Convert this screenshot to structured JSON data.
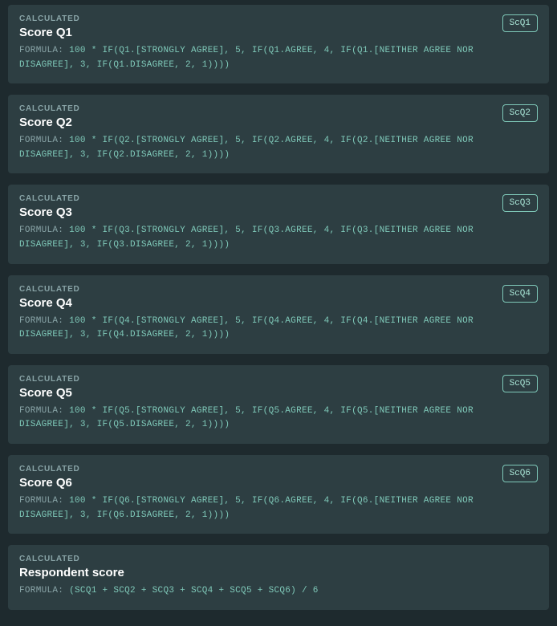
{
  "colors": {
    "page_bg": "#1e2a2e",
    "card_bg": "#2d3e42",
    "type_label": "#8aa5a8",
    "title": "#ffffff",
    "formula_text": "#7fc9b9",
    "formula_prefix": "#8aa5a8",
    "badge_border": "#7fc9b9",
    "badge_text": "#a9e5d6"
  },
  "labels": {
    "type": "CALCULATED",
    "formula_prefix": "FORMULA:"
  },
  "cards": [
    {
      "title": "Score Q1",
      "badge": "ScQ1",
      "formula": "100 * IF(Q1.[STRONGLY AGREE], 5, IF(Q1.AGREE, 4, IF(Q1.[NEITHER AGREE NOR DISAGREE], 3, IF(Q1.DISAGREE, 2, 1))))"
    },
    {
      "title": "Score Q2",
      "badge": "ScQ2",
      "formula": "100 * IF(Q2.[STRONGLY AGREE], 5, IF(Q2.AGREE, 4, IF(Q2.[NEITHER AGREE NOR DISAGREE], 3, IF(Q2.DISAGREE, 2, 1))))"
    },
    {
      "title": "Score Q3",
      "badge": "ScQ3",
      "formula": "100 * IF(Q3.[STRONGLY AGREE], 5, IF(Q3.AGREE, 4, IF(Q3.[NEITHER AGREE NOR DISAGREE], 3, IF(Q3.DISAGREE, 2, 1))))"
    },
    {
      "title": "Score Q4",
      "badge": "ScQ4",
      "formula": "100 * IF(Q4.[STRONGLY AGREE], 5, IF(Q4.AGREE, 4, IF(Q4.[NEITHER AGREE NOR DISAGREE], 3, IF(Q4.DISAGREE, 2, 1))))"
    },
    {
      "title": "Score Q5",
      "badge": "ScQ5",
      "formula": "100 * IF(Q5.[STRONGLY AGREE], 5, IF(Q5.AGREE, 4, IF(Q5.[NEITHER AGREE NOR DISAGREE], 3, IF(Q5.DISAGREE, 2, 1))))"
    },
    {
      "title": "Score Q6",
      "badge": "ScQ6",
      "formula": "100 * IF(Q6.[STRONGLY AGREE], 5, IF(Q6.AGREE, 4, IF(Q6.[NEITHER AGREE NOR DISAGREE], 3, IF(Q6.DISAGREE, 2, 1))))"
    },
    {
      "title": "Respondent score",
      "badge": null,
      "formula": "(SCQ1 + SCQ2 + SCQ3 + SCQ4 + SCQ5 + SCQ6) / 6"
    }
  ]
}
